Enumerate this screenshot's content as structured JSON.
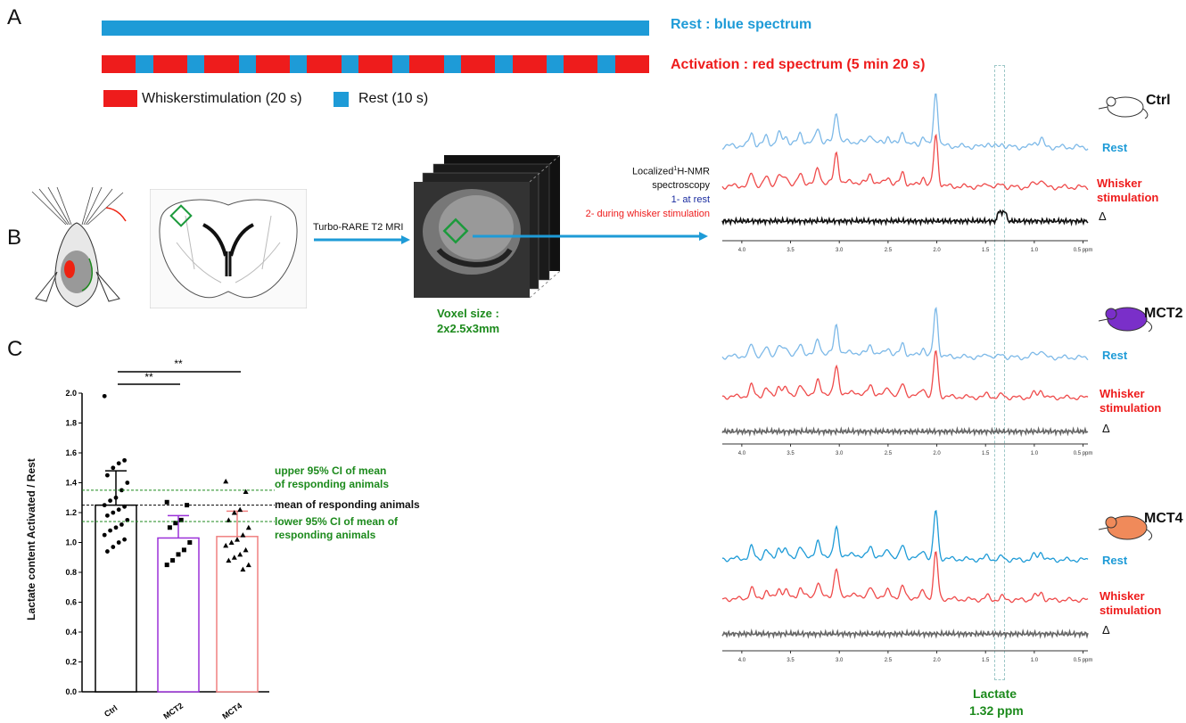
{
  "panels": {
    "a": "A",
    "b": "B",
    "c": "C"
  },
  "panel_a": {
    "rest_title": "Rest : blue spectrum",
    "activation_title": "Activation : red spectrum (5 min 20 s)",
    "legend_stim": "Whiskerstimulation (20 s)",
    "legend_rest": "Rest (10 s)",
    "blocks": 11,
    "colors": {
      "rest": "#1e9bd7",
      "stim": "#ee1c1c"
    }
  },
  "panel_b": {
    "mri_label": "Turbo-RARE T2 MRI",
    "nmr_line1": "Localized",
    "nmr_sup": "1",
    "nmr_line1b": "H-NMR",
    "nmr_line2": "spectroscopy",
    "nmr_step1": "1- at rest",
    "nmr_step2": "2- during whisker stimulation",
    "voxel_line1": "Voxel size :",
    "voxel_line2": "2x2.5x3mm"
  },
  "spectra": [
    {
      "mouse": "Ctrl",
      "rest": "Rest",
      "stim_line1": "Whisker",
      "stim_line2": "stimulation",
      "delta": "Δ",
      "ticks": [
        "4.0",
        "3.5",
        "3.0",
        "2.5",
        "2.0",
        "1.5",
        "1.0",
        "0.5 ppm"
      ]
    },
    {
      "mouse": "MCT2",
      "rest": "Rest",
      "stim_line1": "Whisker",
      "stim_line2": "stimulation",
      "delta": "Δ",
      "ticks": [
        "4.0",
        "3.5",
        "3.0",
        "2.5",
        "2.0",
        "1.5",
        "1.0",
        "0.5 ppm"
      ]
    },
    {
      "mouse": "MCT4",
      "rest": "Rest",
      "stim_line1": "Whisker",
      "stim_line2": "stimulation",
      "delta": "Δ",
      "ticks": [
        "4.0",
        "3.5",
        "3.0",
        "2.5",
        "2.0",
        "1.5",
        "1.0",
        "0.5 ppm"
      ]
    }
  ],
  "lactate": {
    "line1": "Lactate",
    "line2": "1.32 ppm"
  },
  "panel_c": {
    "ylabel": "Lactate content Activated / Rest",
    "yticks": [
      "0.0",
      "0.2",
      "0.4",
      "0.6",
      "0.8",
      "1.0",
      "1.2",
      "1.4",
      "1.6",
      "1.8",
      "2.0"
    ],
    "categories": [
      "Ctrl",
      "MCT2",
      "MCT4"
    ],
    "sig1": "**",
    "sig2": "**",
    "upper_ci_1": "upper 95% CI of mean",
    "upper_ci_2": "of responding animals",
    "mean_line": "mean of responding animals",
    "lower_ci_1": "lower 95% CI of mean of",
    "lower_ci_2": "responding animals"
  },
  "chart_data": {
    "type": "bar",
    "categories": [
      "Ctrl",
      "MCT2",
      "MCT4"
    ],
    "values": [
      1.25,
      1.03,
      1.04
    ],
    "error": [
      0.23,
      0.15,
      0.17
    ],
    "ylim": [
      0,
      2.0
    ],
    "ylabel": "Lactate content Activated / Rest",
    "reference_lines": {
      "upper_ci": 1.35,
      "mean": 1.25,
      "lower_ci": 1.14
    },
    "points": {
      "Ctrl": [
        1.98,
        1.55,
        1.53,
        1.5,
        1.45,
        1.4,
        1.35,
        1.3,
        1.28,
        1.25,
        1.24,
        1.22,
        1.2,
        1.18,
        1.15,
        1.12,
        1.1,
        1.08,
        1.05,
        1.02,
        1.0,
        0.97,
        0.94
      ],
      "MCT2": [
        1.27,
        1.25,
        1.15,
        1.13,
        1.1,
        1.0,
        0.95,
        0.92,
        0.88,
        0.85
      ],
      "MCT4": [
        1.41,
        1.34,
        1.22,
        1.2,
        1.15,
        1.1,
        1.05,
        1.02,
        1.0,
        0.98,
        0.95,
        0.92,
        0.9,
        0.88,
        0.85,
        0.82
      ]
    },
    "colors": {
      "Ctrl": "#000000",
      "MCT2": "#9b30d9",
      "MCT4": "#f08080"
    }
  }
}
